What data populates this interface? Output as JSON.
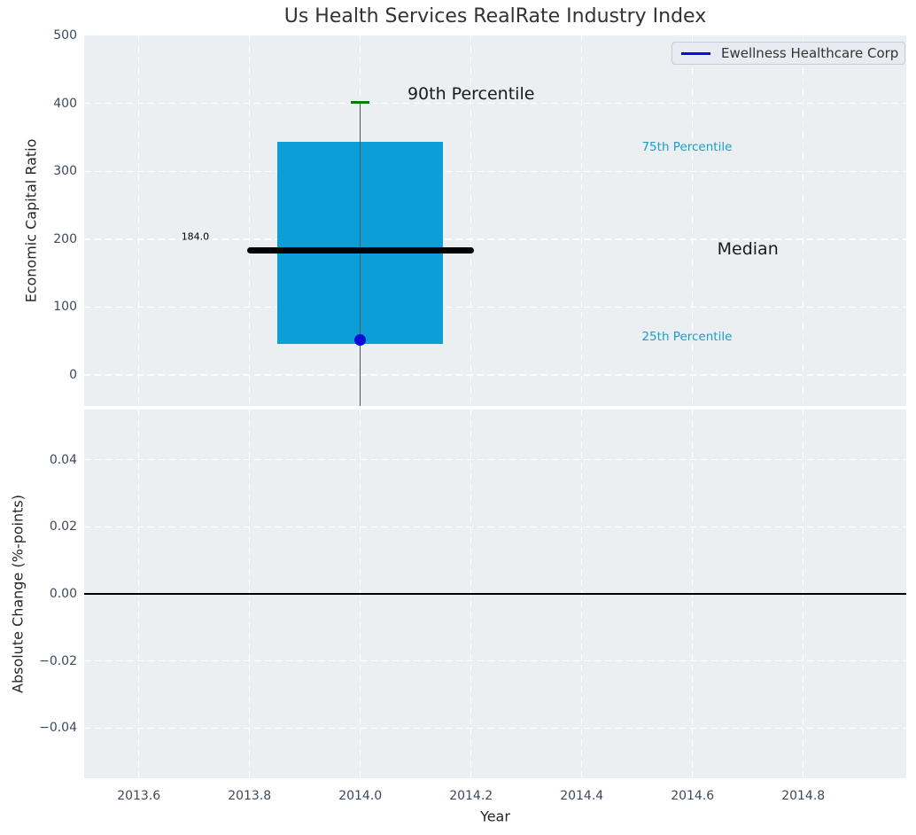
{
  "title": "Us Health Services RealRate Industry Index",
  "legend": {
    "label": "Ewellness Healthcare Corp",
    "line_color": "#0b0bdb",
    "position": "upper right"
  },
  "colors": {
    "axes_bg": "#eceff1",
    "grid": "#ffffff",
    "box_fill": "#0c9fd7",
    "median_line": "#000000",
    "p90_marker": "#008000",
    "company_dot": "#0b0bdb",
    "whisker": "#555555",
    "tick_label": "#3c4a5c",
    "annotation_dark": "#1a1a1a",
    "annotation_cyan": "#1d9bce",
    "zero_line": "#000000",
    "title_color": "#333333",
    "label_color": "#262626",
    "legend_bg": "#e9ebf3",
    "legend_border": "#c9ccd4",
    "legend_text": "#333333"
  },
  "chart_data": [
    {
      "type": "box",
      "title": "Us Health Services RealRate Industry Index",
      "ylabel": "Economic Capital Ratio",
      "xlabel": "",
      "xlim": [
        2013.5,
        2014.99
      ],
      "ylim": [
        -46,
        500
      ],
      "yticks": [
        0,
        100,
        200,
        300,
        400,
        500
      ],
      "xticks": [
        2013.6,
        2013.8,
        2014.0,
        2014.2,
        2014.4,
        2014.6,
        2014.8
      ],
      "grid": true,
      "legend_position": "upper right",
      "box": {
        "x": 2014.0,
        "box_halfwidth_years": 0.15,
        "p25": 46,
        "median": 184.0,
        "p75": 344,
        "p90": 402,
        "median_label": "184.0",
        "median_line_x_range": [
          2013.795,
          2014.205
        ],
        "whisker_extends_below_axis": true
      },
      "company_point": {
        "name": "Ewellness Healthcare Corp",
        "x": 2014.0,
        "y": 52
      },
      "annotations": [
        {
          "text": "90th Percentile",
          "x": 2014.2,
          "y": 414,
          "style": "dark-large"
        },
        {
          "text": "75th Percentile",
          "x": 2014.59,
          "y": 336,
          "style": "cyan-small"
        },
        {
          "text": "Median",
          "x": 2014.7,
          "y": 185,
          "style": "dark-large"
        },
        {
          "text": "25th Percentile",
          "x": 2014.59,
          "y": 56,
          "style": "cyan-small"
        },
        {
          "text": "184.0",
          "x": 2013.702,
          "y": 204,
          "style": "dark-tiny"
        }
      ]
    },
    {
      "type": "line",
      "ylabel": "Absolute Change (%-points)",
      "xlabel": "Year",
      "xlim": [
        2013.5,
        2014.99
      ],
      "ylim": [
        -0.055,
        0.055
      ],
      "yticks": [
        0.04,
        0.02,
        0.0,
        -0.02,
        -0.04
      ],
      "ytick_labels": [
        "0.04",
        "0.02",
        "0.00",
        "−0.02",
        "−0.04"
      ],
      "xticks": [
        2013.6,
        2013.8,
        2014.0,
        2014.2,
        2014.4,
        2014.6,
        2014.8
      ],
      "xtick_labels": [
        "2013.6",
        "2013.8",
        "2014.0",
        "2014.2",
        "2014.4",
        "2014.6",
        "2014.8"
      ],
      "zero_line": 0.0,
      "grid": true,
      "series": []
    }
  ]
}
